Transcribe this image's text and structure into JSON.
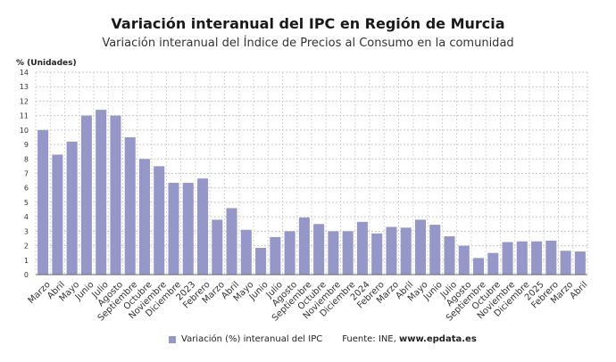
{
  "chart_data": {
    "type": "bar",
    "title": "Variación interanual del IPC en Región de Murcia",
    "subtitle": "Variación interanual del Índice de Precios al Consumo en la comunidad",
    "ylabel": "% (Unidades)",
    "ylim": [
      0,
      14
    ],
    "yticks": [
      "0",
      "1",
      "2",
      "3",
      "4",
      "5",
      "6",
      "7",
      "8",
      "9",
      "10",
      "11",
      "12",
      "13",
      "14"
    ],
    "grid": true,
    "legend_position": "bottom",
    "bar_color": "#9597c8",
    "categories": [
      "Marzo",
      "Abril",
      "Mayo",
      "Junio",
      "Julio",
      "Agosto",
      "Septiembre",
      "Octubre",
      "Noviembre",
      "Diciembre",
      "2023",
      "Febrero",
      "Marzo",
      "Abril",
      "Mayo",
      "Junio",
      "Julio",
      "Agosto",
      "Septiembre",
      "Octubre",
      "Noviembre",
      "Diciembre",
      "2024",
      "Febrero",
      "Marzo",
      "Abril",
      "Mayo",
      "Junio",
      "Julio",
      "Agosto",
      "Septiembre",
      "Octubre",
      "Noviembre",
      "Diciembre",
      "2025",
      "Febrero",
      "Marzo",
      "Abril"
    ],
    "series": [
      {
        "name": "Variación (%) interanual del IPC",
        "values": [
          10.0,
          8.3,
          9.2,
          11.0,
          11.4,
          11.0,
          9.5,
          8.0,
          7.5,
          6.35,
          6.35,
          6.65,
          3.8,
          4.6,
          3.1,
          1.85,
          2.6,
          3.0,
          3.95,
          3.5,
          3.0,
          3.0,
          3.65,
          2.85,
          3.3,
          3.25,
          3.8,
          3.45,
          2.65,
          2.0,
          1.15,
          1.5,
          2.25,
          2.3,
          2.3,
          2.35,
          1.65,
          1.6
        ]
      }
    ]
  },
  "legend": {
    "series_label": "Variación (%) interanual del IPC",
    "source_prefix": "Fuente: INE, ",
    "source_site": "www.epdata.es"
  }
}
